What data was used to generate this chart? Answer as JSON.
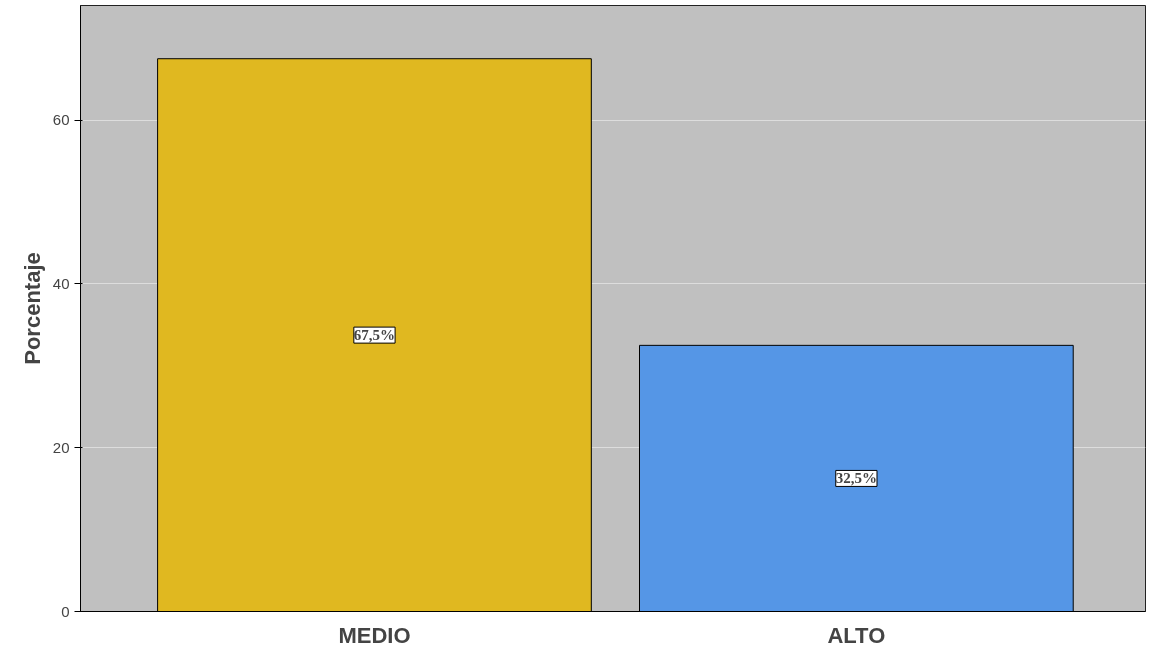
{
  "chart_data": {
    "type": "bar",
    "ylabel": "Porcentaje",
    "categories": [
      "MEDIO",
      "ALTO"
    ],
    "values": [
      67.5,
      32.5
    ],
    "colors": [
      "#e0b820",
      "#5596e6"
    ],
    "value_labels": [
      "67,5%",
      "32,5%"
    ],
    "ylim": [
      0,
      74
    ],
    "yticks": [
      0,
      20,
      40,
      60
    ],
    "grid": "y"
  }
}
